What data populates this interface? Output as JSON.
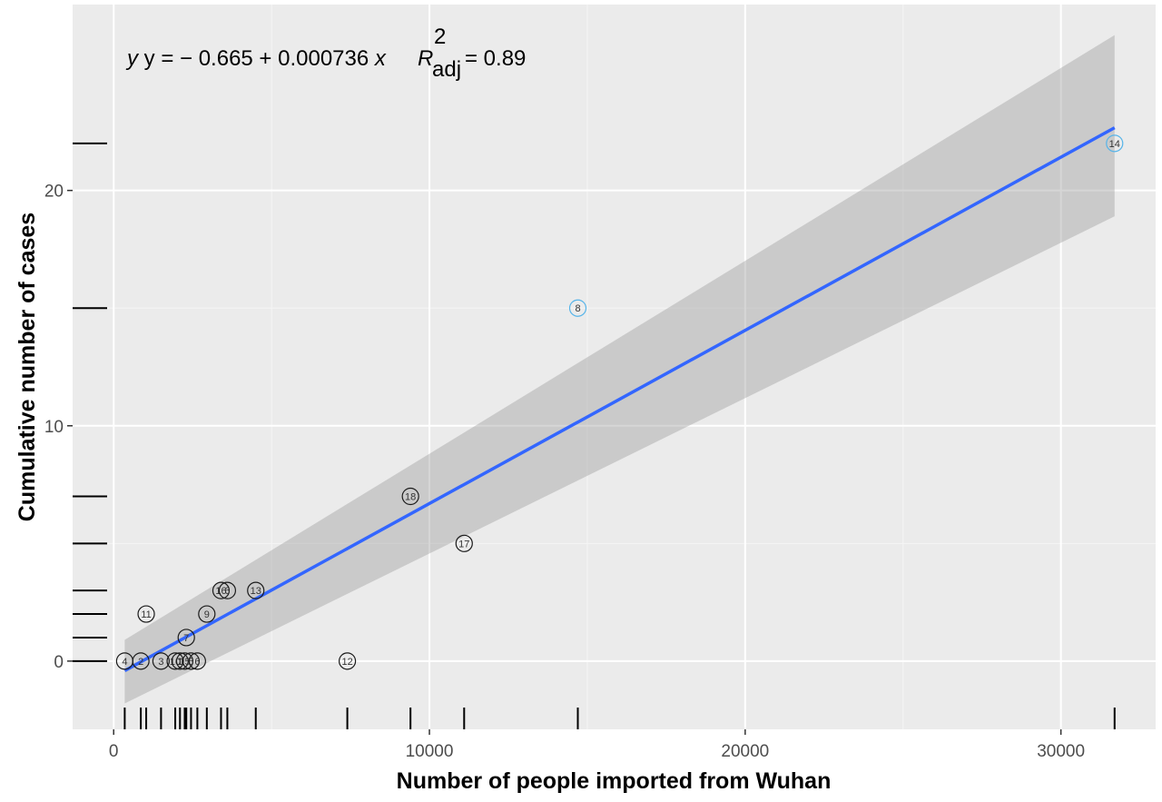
{
  "chart_data": {
    "type": "scatter",
    "title": "",
    "xlabel": "Number of people imported from Wuhan",
    "ylabel": "Cumulative number of cases",
    "xlim": [
      -1300,
      33000
    ],
    "ylim": [
      -2.9,
      27.9
    ],
    "x_ticks": [
      0,
      10000,
      20000,
      30000
    ],
    "x_tick_labels": [
      "0",
      "10000",
      "20000",
      "30000"
    ],
    "y_ticks": [
      0,
      10,
      20
    ],
    "y_tick_labels": [
      "0",
      "10",
      "20"
    ],
    "grid": true,
    "rug": true,
    "annotation": {
      "equation_prefix": "y = − 0.665 + 0.000736",
      "equation_var": "x",
      "r_symbol": "R",
      "r_sup": "2",
      "r_sub": "adj",
      "r_value": "= 0.89"
    },
    "regression": {
      "intercept": -0.665,
      "slope": 0.000736,
      "x_range": [
        350,
        31700
      ],
      "ci_lower_at_start": -1.8,
      "ci_upper_at_start": 0.9,
      "ci_lower_at_end": 18.9,
      "ci_upper_at_end": 26.6,
      "line_color": "#3366ff",
      "band_color": "#999999"
    },
    "points": [
      {
        "label": "4",
        "x": 350,
        "y": 0
      },
      {
        "label": "2",
        "x": 860,
        "y": 0
      },
      {
        "label": "3",
        "x": 1500,
        "y": 0
      },
      {
        "label": "10",
        "x": 1950,
        "y": 0
      },
      {
        "label": "1",
        "x": 2100,
        "y": 0
      },
      {
        "label": "15",
        "x": 2250,
        "y": 0
      },
      {
        "label": "5",
        "x": 2450,
        "y": 0
      },
      {
        "label": "6",
        "x": 2650,
        "y": 0
      },
      {
        "label": "11",
        "x": 1030,
        "y": 2
      },
      {
        "label": "7",
        "x": 2300,
        "y": 1
      },
      {
        "label": "9",
        "x": 2950,
        "y": 2
      },
      {
        "label": "16",
        "x": 3400,
        "y": 3
      },
      {
        "label": "6",
        "x": 3600,
        "y": 3
      },
      {
        "label": "13",
        "x": 4500,
        "y": 3
      },
      {
        "label": "12",
        "x": 7400,
        "y": 0
      },
      {
        "label": "18",
        "x": 9400,
        "y": 7
      },
      {
        "label": "17",
        "x": 11100,
        "y": 5
      },
      {
        "label": "8",
        "x": 14700,
        "y": 15
      },
      {
        "label": "14",
        "x": 31700,
        "y": 22
      }
    ],
    "point_colors": {
      "default": "#1a1a1a",
      "highlight": "#56b4e9",
      "highlight_labels": [
        "8",
        "14"
      ]
    },
    "colors": {
      "panel_bg": "#ebebeb",
      "grid_major": "#ffffff",
      "grid_minor": "#f5f5f5"
    }
  }
}
